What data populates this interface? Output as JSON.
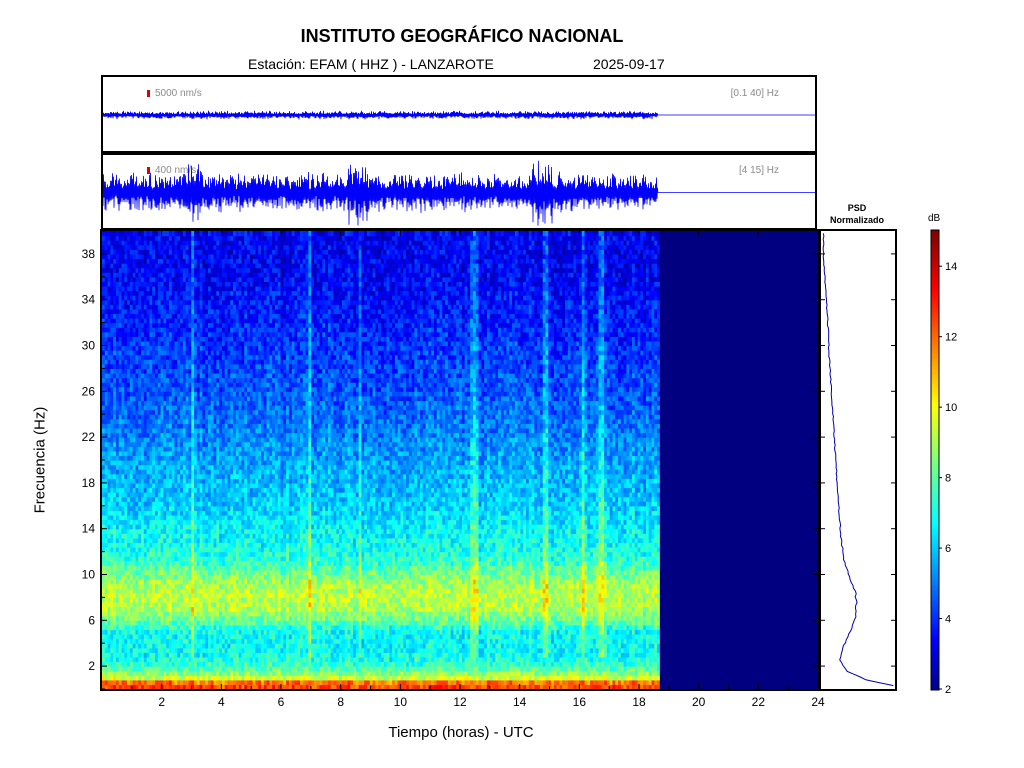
{
  "header": {
    "title": "INSTITUTO GEOGRÁFICO NACIONAL",
    "station": "Estación:  EFAM ( HHZ ) - LANZAROTE",
    "date": "2025-09-17"
  },
  "traces": [
    {
      "scale_label": "5000 nm/s",
      "band_label": "[0.1 40] Hz",
      "color": "#0000ff",
      "relative_amplitude": 0.06
    },
    {
      "scale_label": "400 nm/s",
      "band_label": "[4 15] Hz",
      "color": "#0000ff",
      "relative_amplitude": 0.28
    }
  ],
  "psd": {
    "title_line1": "PSD",
    "title_line2": "Normalizado",
    "line_color": "#0000aa"
  },
  "colorbar": {
    "unit": "dB",
    "ticks": [
      2,
      4,
      6,
      8,
      10,
      12,
      14
    ],
    "range": [
      2,
      15
    ],
    "colormap": "jet"
  },
  "chart_data": {
    "type": "heatmap",
    "title": "INSTITUTO GEOGRÁFICO NACIONAL",
    "xlabel": "Tiempo (horas) - UTC",
    "ylabel": "Frecuencia  (Hz)",
    "xlim": [
      0,
      24
    ],
    "ylim": [
      0,
      40
    ],
    "xticks": [
      2,
      4,
      6,
      8,
      10,
      12,
      14,
      16,
      18,
      20,
      22,
      24
    ],
    "yticks": [
      2,
      6,
      10,
      14,
      18,
      22,
      26,
      30,
      34,
      38
    ],
    "data_end_hour": 18.7,
    "no_data_value_db": 2,
    "zlabel": "dB",
    "zlim": [
      2,
      15
    ],
    "mean_db_by_frequency": {
      "frequency_hz": [
        0.5,
        1,
        2,
        3,
        4,
        5,
        6,
        7,
        8,
        9,
        10,
        11,
        12,
        14,
        16,
        18,
        20,
        22,
        24,
        26,
        28,
        30,
        32,
        34,
        36,
        38,
        40
      ],
      "db": [
        12.5,
        9.5,
        7.6,
        7.0,
        6.9,
        7.0,
        8.2,
        9.0,
        9.3,
        9.1,
        8.4,
        7.6,
        7.2,
        6.8,
        6.3,
        6.0,
        5.7,
        5.3,
        5.0,
        4.7,
        4.5,
        4.3,
        4.0,
        3.8,
        3.6,
        3.5,
        3.5
      ]
    },
    "vertical_streaks_hours": [
      3.0,
      6.9,
      8.6,
      12.4,
      12.5,
      14.8,
      16.1,
      16.7
    ],
    "psd_normalized": {
      "frequency_hz": [
        0.3,
        0.8,
        1.5,
        2.5,
        3.5,
        4.5,
        5.5,
        6.5,
        7.5,
        8.5,
        9.5,
        10.5,
        11.5,
        13,
        15,
        17,
        19,
        21,
        23,
        25,
        27,
        29,
        31,
        33,
        35,
        36,
        37,
        38,
        39.7
      ],
      "value": [
        1.0,
        0.62,
        0.35,
        0.25,
        0.28,
        0.35,
        0.42,
        0.47,
        0.48,
        0.46,
        0.4,
        0.34,
        0.3,
        0.27,
        0.24,
        0.22,
        0.2,
        0.18,
        0.16,
        0.14,
        0.12,
        0.1,
        0.09,
        0.07,
        0.05,
        0.04,
        0.03,
        0.02,
        0.02
      ]
    }
  }
}
